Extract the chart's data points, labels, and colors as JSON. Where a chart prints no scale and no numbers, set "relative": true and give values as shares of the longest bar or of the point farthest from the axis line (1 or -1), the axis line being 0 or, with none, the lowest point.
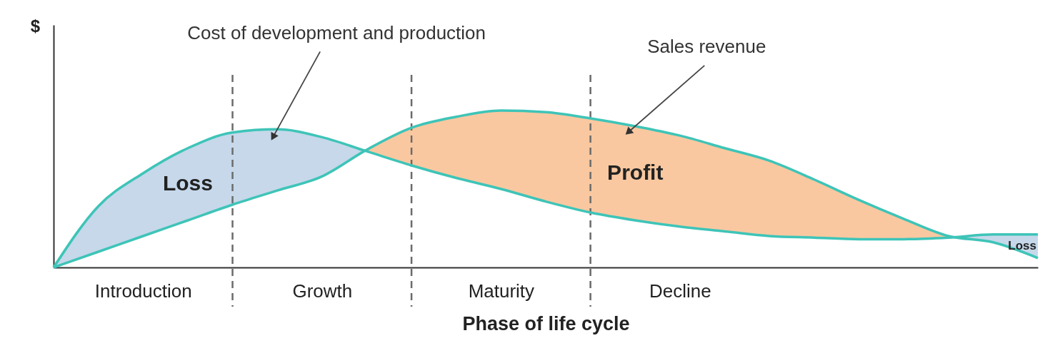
{
  "chart_data": {
    "type": "line",
    "relative": true,
    "xlabel": "Phase of life cycle",
    "ylabel": "$",
    "categories": [
      null,
      null,
      "Introduction",
      null,
      null,
      null,
      "Growth",
      null,
      null,
      null,
      "Maturity",
      null,
      null,
      null,
      "Decline",
      null,
      null,
      null,
      null,
      null,
      null,
      null,
      null
    ],
    "series": [
      {
        "name": "Cost of development and production",
        "color": "#3ec4b8",
        "values": [
          0,
          0.39,
          0.6,
          0.76,
          0.86,
          0.88,
          0.83,
          0.74,
          0.65,
          0.57,
          0.5,
          0.42,
          0.35,
          0.3,
          0.26,
          0.23,
          0.2,
          0.19,
          0.18,
          0.18,
          0.19,
          0.21,
          0.21
        ]
      },
      {
        "name": "Sales revenue",
        "color": "#3ec4b8",
        "values": [
          0,
          0.1,
          0.2,
          0.3,
          0.4,
          0.49,
          0.58,
          0.75,
          0.89,
          0.96,
          1,
          0.99,
          0.95,
          0.9,
          0.84,
          0.76,
          0.68,
          0.56,
          0.43,
          0.31,
          0.2,
          0.16,
          0.06
        ]
      }
    ],
    "annotations": [
      "Loss",
      "Profit",
      "Loss"
    ],
    "grid": "x",
    "line_style": "solid",
    "marker": "none"
  }
}
